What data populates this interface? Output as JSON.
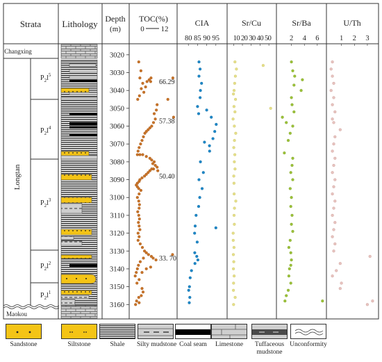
{
  "header": {
    "strata": "Strata",
    "lithology": "Lithology",
    "depth": "Depth",
    "depth_unit": "(m)",
    "toc_title": "TOC(%)",
    "toc_scale_min": "0",
    "toc_scale_max": "12",
    "cia_title": "CIA",
    "srcu_title": "Sr/Cu",
    "srba_title": "Sr/Ba",
    "uth_title": "U/Th"
  },
  "strata": {
    "changxing": "Changxing",
    "longtan": "Longtan",
    "maokou": "Maokou",
    "members": [
      {
        "base": "P",
        "sub": "2",
        "letter": "l",
        "sup": "5"
      },
      {
        "base": "P",
        "sub": "2",
        "letter": "l",
        "sup": "4"
      },
      {
        "base": "P",
        "sub": "2",
        "letter": "l",
        "sup": "3"
      },
      {
        "base": "P",
        "sub": "2",
        "letter": "l",
        "sup": "2"
      },
      {
        "base": "P",
        "sub": "2",
        "letter": "l",
        "sup": "1"
      }
    ]
  },
  "legend": [
    {
      "label": "Sandstone",
      "key": "sandstone"
    },
    {
      "label": "Siltstone",
      "key": "siltstone"
    },
    {
      "label": "Shale",
      "key": "shale"
    },
    {
      "label": "Silty mudstone",
      "key": "silty-mudstone"
    },
    {
      "label": "Coal seam",
      "key": "coal-seam"
    },
    {
      "label": "Limestone",
      "key": "limestone"
    },
    {
      "label": "Tuffaceous mudstone",
      "key": "tuffaceous-mudstone"
    },
    {
      "label": "Unconformity",
      "key": "unconformity"
    }
  ],
  "colors": {
    "toc": "#c8742a",
    "cia": "#1e88c8",
    "srcu": "#e6e08a",
    "srba": "#9cc23a",
    "uth": "#e8c4c0",
    "sandstone": "#f4c416",
    "siltstone": "#f4c416",
    "shale": "#4a4a4a",
    "coal": "#000000",
    "limestone": "#cccccc"
  },
  "chart_data": {
    "type": "scatter",
    "y_axis": {
      "label": "Depth",
      "unit": "m",
      "range": [
        3015,
        3163
      ],
      "ticks": [
        3020,
        3030,
        3040,
        3050,
        3060,
        3070,
        3080,
        3090,
        3100,
        3110,
        3120,
        3130,
        3140,
        3150,
        3160
      ],
      "inverted": true
    },
    "panels": [
      {
        "key": "toc",
        "xlabel": "TOC(%)",
        "xlim": [
          0,
          12
        ],
        "ticks": [],
        "outlier_labels": [
          {
            "depth": 3035,
            "text": "66.29"
          },
          {
            "depth": 3057,
            "text": "57.38"
          },
          {
            "depth": 3088,
            "text": "50.40"
          },
          {
            "depth": 3134,
            "text": "33. 70"
          }
        ],
        "points": [
          [
            1.9,
            3024
          ],
          [
            2.5,
            3029
          ],
          [
            2.2,
            3033
          ],
          [
            3.0,
            3036
          ],
          [
            4.2,
            3035
          ],
          [
            4.8,
            3034
          ],
          [
            5.3,
            3033
          ],
          [
            5.2,
            3035
          ],
          [
            3.8,
            3038
          ],
          [
            3.3,
            3041
          ],
          [
            2.6,
            3039
          ],
          [
            2.1,
            3043
          ],
          [
            1.6,
            3045
          ],
          [
            11.4,
            3033
          ],
          [
            10.0,
            3045
          ],
          [
            11.6,
            3055
          ],
          [
            7.0,
            3048
          ],
          [
            6.8,
            3051
          ],
          [
            6.2,
            3053
          ],
          [
            6.5,
            3056
          ],
          [
            6.0,
            3058
          ],
          [
            5.5,
            3060
          ],
          [
            5.0,
            3061
          ],
          [
            4.5,
            3062
          ],
          [
            4.0,
            3063
          ],
          [
            3.6,
            3064
          ],
          [
            3.2,
            3066
          ],
          [
            2.8,
            3068
          ],
          [
            2.4,
            3070
          ],
          [
            2.0,
            3072
          ],
          [
            1.7,
            3074
          ],
          [
            1.5,
            3076
          ],
          [
            2.2,
            3076
          ],
          [
            3.0,
            3076
          ],
          [
            4.0,
            3077
          ],
          [
            5.0,
            3078
          ],
          [
            5.5,
            3079
          ],
          [
            6.2,
            3080
          ],
          [
            5.8,
            3081
          ],
          [
            6.5,
            3082
          ],
          [
            7.0,
            3083
          ],
          [
            6.0,
            3084
          ],
          [
            7.2,
            3085
          ],
          [
            5.5,
            3084
          ],
          [
            5.0,
            3085
          ],
          [
            4.5,
            3086
          ],
          [
            4.0,
            3087
          ],
          [
            3.5,
            3088
          ],
          [
            2.8,
            3089
          ],
          [
            2.2,
            3090
          ],
          [
            2.0,
            3091
          ],
          [
            1.5,
            3092
          ],
          [
            1.2,
            3093
          ],
          [
            1.5,
            3094
          ],
          [
            1.9,
            3095
          ],
          [
            2.5,
            3096
          ],
          [
            2.0,
            3098
          ],
          [
            1.5,
            3100
          ],
          [
            1.9,
            3102
          ],
          [
            2.1,
            3104
          ],
          [
            2.0,
            3106
          ],
          [
            1.6,
            3108
          ],
          [
            1.9,
            3110
          ],
          [
            2.1,
            3112
          ],
          [
            1.8,
            3114
          ],
          [
            2.0,
            3116
          ],
          [
            2.2,
            3118
          ],
          [
            1.7,
            3120
          ],
          [
            2.0,
            3122
          ],
          [
            1.7,
            3124
          ],
          [
            2.3,
            3126
          ],
          [
            2.9,
            3128
          ],
          [
            3.5,
            3130
          ],
          [
            4.0,
            3131
          ],
          [
            4.6,
            3132
          ],
          [
            5.4,
            3133
          ],
          [
            5.9,
            3134
          ],
          [
            6.7,
            3135
          ],
          [
            11.3,
            3132
          ],
          [
            3.2,
            3134
          ],
          [
            2.3,
            3136
          ],
          [
            1.8,
            3138
          ],
          [
            1.5,
            3140
          ],
          [
            1.2,
            3142
          ],
          [
            0.9,
            3144
          ],
          [
            2.8,
            3142
          ],
          [
            4.0,
            3140
          ],
          [
            5.2,
            3139
          ],
          [
            2.0,
            3146
          ],
          [
            1.4,
            3148
          ],
          [
            2.8,
            3151
          ],
          [
            3.1,
            3153
          ],
          [
            2.6,
            3155
          ],
          [
            1.9,
            3156
          ],
          [
            1.3,
            3158
          ],
          [
            1.0,
            3160
          ],
          [
            2.0,
            3159
          ]
        ]
      },
      {
        "key": "cia",
        "xlabel": "CIA",
        "xlim": [
          75,
          100
        ],
        "ticks": [
          80,
          85,
          90,
          95
        ],
        "points": [
          [
            85.8,
            3024
          ],
          [
            86.4,
            3028
          ],
          [
            85.8,
            3032
          ],
          [
            87.2,
            3036
          ],
          [
            86.6,
            3040
          ],
          [
            86.4,
            3044
          ],
          [
            85.0,
            3049
          ],
          [
            85.6,
            3053
          ],
          [
            90.0,
            3051
          ],
          [
            92.5,
            3055
          ],
          [
            95.2,
            3059
          ],
          [
            94.4,
            3063
          ],
          [
            93.4,
            3067
          ],
          [
            91.5,
            3071
          ],
          [
            88.8,
            3069
          ],
          [
            91.6,
            3074
          ],
          [
            86.6,
            3080
          ],
          [
            88.2,
            3086
          ],
          [
            85.8,
            3090
          ],
          [
            87.5,
            3095
          ],
          [
            86.2,
            3100
          ],
          [
            85.6,
            3105
          ],
          [
            84.2,
            3110
          ],
          [
            83.7,
            3116
          ],
          [
            95.0,
            3117
          ],
          [
            83.4,
            3120
          ],
          [
            84.8,
            3125
          ],
          [
            83.5,
            3131
          ],
          [
            84.6,
            3133
          ],
          [
            85.2,
            3135
          ],
          [
            83.6,
            3137
          ],
          [
            81.7,
            3141
          ],
          [
            81.0,
            3145
          ],
          [
            80.6,
            3150
          ],
          [
            80.2,
            3152
          ],
          [
            80.8,
            3156
          ],
          [
            80.5,
            3159
          ]
        ]
      },
      {
        "key": "srcu",
        "xlabel": "Sr/Cu",
        "xlim": [
          5,
          57
        ],
        "ticks": [
          10,
          20,
          30,
          40,
          50
        ],
        "tick_labels_joined": "10 20 30 40 50",
        "points": [
          [
            11.5,
            3024
          ],
          [
            13.2,
            3028
          ],
          [
            12.0,
            3032
          ],
          [
            11.2,
            3036
          ],
          [
            10.5,
            3040
          ],
          [
            9.8,
            3042
          ],
          [
            12.2,
            3045
          ],
          [
            10.4,
            3049
          ],
          [
            11.5,
            3052
          ],
          [
            9.4,
            3056
          ],
          [
            10.8,
            3060
          ],
          [
            12.4,
            3064
          ],
          [
            11.0,
            3068
          ],
          [
            10.2,
            3072
          ],
          [
            11.4,
            3076
          ],
          [
            10.8,
            3080
          ],
          [
            11.6,
            3084
          ],
          [
            10.2,
            3088
          ],
          [
            10.4,
            3092
          ],
          [
            10.6,
            3098
          ],
          [
            12.5,
            3102
          ],
          [
            11.0,
            3106
          ],
          [
            10.5,
            3110
          ],
          [
            10.8,
            3115
          ],
          [
            9.5,
            3120
          ],
          [
            9.6,
            3124
          ],
          [
            10.4,
            3128
          ],
          [
            9.7,
            3132
          ],
          [
            10.2,
            3136
          ],
          [
            9.8,
            3140
          ],
          [
            10.6,
            3144
          ],
          [
            10.0,
            3148
          ],
          [
            9.8,
            3152
          ],
          [
            11.8,
            3156
          ],
          [
            10.0,
            3160
          ],
          [
            43.5,
            3026
          ],
          [
            52.0,
            3050
          ]
        ]
      },
      {
        "key": "srba",
        "xlabel": "Sr/Ba",
        "xlim": [
          0,
          7.2
        ],
        "ticks": [
          2,
          4,
          6
        ],
        "points": [
          [
            2.0,
            3024
          ],
          [
            2.2,
            3029
          ],
          [
            2.5,
            3032
          ],
          [
            3.7,
            3034
          ],
          [
            2.4,
            3037
          ],
          [
            3.5,
            3040
          ],
          [
            2.0,
            3044
          ],
          [
            2.1,
            3048
          ],
          [
            2.4,
            3052
          ],
          [
            0.6,
            3055
          ],
          [
            1.2,
            3058
          ],
          [
            2.2,
            3060
          ],
          [
            1.8,
            3064
          ],
          [
            1.5,
            3068
          ],
          [
            0.9,
            3075
          ],
          [
            2.2,
            3078
          ],
          [
            2.1,
            3082
          ],
          [
            1.9,
            3086
          ],
          [
            2.2,
            3090
          ],
          [
            1.8,
            3095
          ],
          [
            2.0,
            3100
          ],
          [
            1.9,
            3105
          ],
          [
            2.1,
            3110
          ],
          [
            2.0,
            3115
          ],
          [
            2.2,
            3119
          ],
          [
            1.8,
            3124
          ],
          [
            1.6,
            3128
          ],
          [
            1.9,
            3131
          ],
          [
            2.0,
            3135
          ],
          [
            1.9,
            3138
          ],
          [
            1.7,
            3140
          ],
          [
            1.6,
            3144
          ],
          [
            1.9,
            3148
          ],
          [
            1.5,
            3152
          ],
          [
            1.2,
            3155
          ],
          [
            1.0,
            3158
          ],
          [
            6.8,
            3158
          ]
        ]
      },
      {
        "key": "uth",
        "xlabel": "U/Th",
        "xlim": [
          0,
          3.7
        ],
        "ticks": [
          1,
          2,
          3
        ],
        "points": [
          [
            0.3,
            3024
          ],
          [
            0.2,
            3028
          ],
          [
            0.3,
            3032
          ],
          [
            0.4,
            3036
          ],
          [
            0.2,
            3040
          ],
          [
            0.4,
            3044
          ],
          [
            0.3,
            3048
          ],
          [
            0.5,
            3052
          ],
          [
            0.3,
            3056
          ],
          [
            0.4,
            3058
          ],
          [
            0.9,
            3062
          ],
          [
            0.5,
            3066
          ],
          [
            0.4,
            3070
          ],
          [
            0.3,
            3074
          ],
          [
            0.5,
            3078
          ],
          [
            0.4,
            3082
          ],
          [
            0.3,
            3086
          ],
          [
            0.5,
            3090
          ],
          [
            0.4,
            3094
          ],
          [
            0.3,
            3098
          ],
          [
            0.5,
            3102
          ],
          [
            0.4,
            3106
          ],
          [
            0.3,
            3110
          ],
          [
            0.5,
            3114
          ],
          [
            0.4,
            3118
          ],
          [
            0.3,
            3122
          ],
          [
            0.5,
            3126
          ],
          [
            0.4,
            3130
          ],
          [
            3.2,
            3133
          ],
          [
            0.9,
            3137
          ],
          [
            0.6,
            3141
          ],
          [
            0.3,
            3144
          ],
          [
            1.0,
            3148
          ],
          [
            0.9,
            3151
          ],
          [
            3.4,
            3158
          ],
          [
            3.0,
            3160
          ]
        ]
      }
    ]
  }
}
